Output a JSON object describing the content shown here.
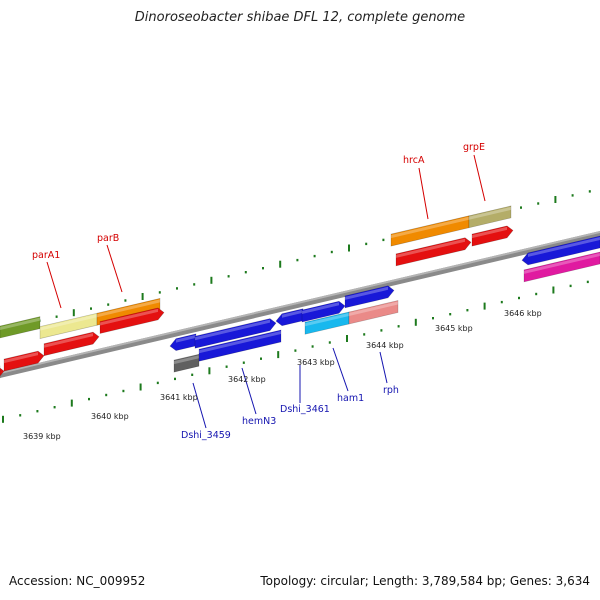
{
  "title": "Dinoroseobacter shibae DFL 12, complete genome",
  "accession_text": "Accession: NC_009952",
  "summary_text": "Topology: circular; Length: 3,789,584 bp; Genes: 3,634",
  "colors": {
    "backbone": "#8a8a8a",
    "tick_green": "#1d7a1d",
    "red": "#e41010",
    "orange": "#f08a00",
    "khaki": "#b4ad68",
    "olive": "#6f9a28",
    "pale_yellow": "#ece890",
    "blue": "#1818d8",
    "cyan": "#18b8ee",
    "salmon": "#ea8a88",
    "magenta": "#e01aa0",
    "gray": "#606060"
  },
  "gene_labels": [
    {
      "id": "parA1",
      "text": "parA1",
      "color": "red"
    },
    {
      "id": "parB",
      "text": "parB",
      "color": "red"
    },
    {
      "id": "hrcA",
      "text": "hrcA",
      "color": "red"
    },
    {
      "id": "grpE",
      "text": "grpE",
      "color": "red"
    },
    {
      "id": "Dshi_3459",
      "text": "Dshi_3459",
      "color": "blue"
    },
    {
      "id": "hemN3",
      "text": "hemN3",
      "color": "blue"
    },
    {
      "id": "Dshi_3461",
      "text": "Dshi_3461",
      "color": "blue"
    },
    {
      "id": "ham1",
      "text": "ham1",
      "color": "blue"
    },
    {
      "id": "rph",
      "text": "rph",
      "color": "blue"
    }
  ],
  "scale_labels": [
    "3639 kbp",
    "3640 kbp",
    "3641 kbp",
    "3642 kbp",
    "3643 kbp",
    "3644 kbp",
    "3645 kbp",
    "3646 kbp"
  ]
}
